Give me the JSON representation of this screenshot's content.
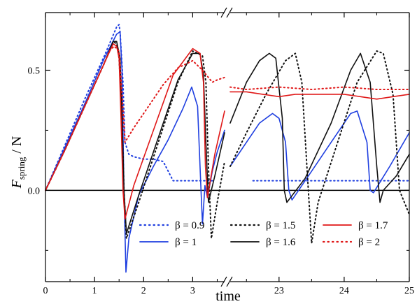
{
  "chart_data": {
    "type": "line",
    "title": "",
    "xlabel": "time",
    "ylabel": "F",
    "ylabel_sub": "spring",
    "ylabel_suffix": " / N",
    "xlim": [
      0,
      25
    ],
    "ylim": [
      -0.38,
      0.74
    ],
    "axis_break": {
      "left_segment": [
        0,
        3.65
      ],
      "right_segment": [
        22.25,
        25
      ]
    },
    "x_ticks": [
      0,
      1,
      2,
      3,
      23,
      24,
      25
    ],
    "y_ticks": [
      0.0,
      0.5
    ],
    "y_tick_labels": [
      "0.0",
      "0.5"
    ],
    "zero_line": true,
    "grid": false,
    "legend": {
      "position": "bottom",
      "columns": 3
    },
    "series": [
      {
        "name": "β = 0.9",
        "color": "#1f3fe0",
        "style": "dotted",
        "x": [
          0,
          0.4,
          0.8,
          1.2,
          1.45,
          1.5,
          1.52,
          1.58,
          1.62,
          1.7,
          1.8,
          2.0,
          2.2,
          2.4,
          2.6,
          3.0,
          3.4,
          22.6,
          23.0,
          23.5,
          24.0,
          24.5,
          25.0
        ],
        "y": [
          0,
          0.19,
          0.38,
          0.56,
          0.68,
          0.69,
          0.66,
          0.45,
          0.2,
          0.15,
          0.14,
          0.13,
          0.13,
          0.12,
          0.04,
          0.04,
          0.04,
          0.04,
          0.04,
          0.04,
          0.04,
          0.04,
          0.04
        ]
      },
      {
        "name": "β = 1",
        "color": "#1f3fe0",
        "style": "solid",
        "x": [
          0,
          0.4,
          0.8,
          1.2,
          1.45,
          1.52,
          1.56,
          1.6,
          1.64,
          1.7,
          1.9,
          2.2,
          2.5,
          2.8,
          2.98,
          3.1,
          3.17,
          3.2,
          3.25,
          3.3,
          3.4,
          3.5,
          3.65,
          22.25,
          22.5,
          22.7,
          22.9,
          23.0,
          23.1,
          23.15,
          23.2,
          23.5,
          23.8,
          24.1,
          24.2,
          24.35,
          24.4,
          24.45,
          24.7,
          25.0
        ],
        "y": [
          0,
          0.18,
          0.36,
          0.55,
          0.65,
          0.66,
          0.5,
          0.0,
          -0.34,
          -0.2,
          -0.02,
          0.1,
          0.21,
          0.34,
          0.43,
          0.35,
          0.0,
          -0.14,
          0.02,
          -0.03,
          0.08,
          0.16,
          0.25,
          0.1,
          0.2,
          0.28,
          0.32,
          0.3,
          0.2,
          0.0,
          -0.04,
          0.08,
          0.2,
          0.32,
          0.33,
          0.2,
          0.0,
          -0.01,
          0.1,
          0.24
        ]
      },
      {
        "name": "β = 1.5",
        "color": "#111111",
        "style": "dotted",
        "x": [
          0,
          0.4,
          0.8,
          1.2,
          1.38,
          1.45,
          1.5,
          1.56,
          1.6,
          1.65,
          1.9,
          2.3,
          2.7,
          3.0,
          3.2,
          3.27,
          3.32,
          3.38,
          3.5,
          3.65,
          22.25,
          22.5,
          22.8,
          23.1,
          23.25,
          23.35,
          23.45,
          23.5,
          23.6,
          23.9,
          24.2,
          24.5,
          24.6,
          24.75,
          24.85,
          25.0
        ],
        "y": [
          0,
          0.17,
          0.35,
          0.53,
          0.62,
          0.61,
          0.55,
          0.3,
          0.0,
          -0.2,
          -0.05,
          0.2,
          0.45,
          0.58,
          0.56,
          0.45,
          0.1,
          -0.2,
          -0.05,
          0.12,
          0.1,
          0.24,
          0.4,
          0.54,
          0.57,
          0.45,
          0.0,
          -0.22,
          -0.05,
          0.2,
          0.45,
          0.58,
          0.57,
          0.4,
          0.0,
          -0.1
        ]
      },
      {
        "name": "β = 1.6",
        "color": "#111111",
        "style": "solid",
        "x": [
          0,
          0.4,
          0.8,
          1.2,
          1.38,
          1.45,
          1.52,
          1.56,
          1.6,
          1.65,
          1.9,
          2.3,
          2.7,
          3.0,
          3.15,
          3.22,
          3.27,
          3.32,
          3.45,
          3.65,
          22.25,
          22.5,
          22.7,
          22.85,
          22.95,
          23.05,
          23.08,
          23.12,
          23.4,
          23.8,
          24.1,
          24.25,
          24.4,
          24.5,
          24.55,
          24.6,
          24.8,
          25.0
        ],
        "y": [
          0,
          0.17,
          0.35,
          0.53,
          0.62,
          0.62,
          0.55,
          0.3,
          0.0,
          -0.18,
          -0.02,
          0.22,
          0.46,
          0.57,
          0.57,
          0.48,
          0.2,
          -0.05,
          0.06,
          0.24,
          0.28,
          0.45,
          0.54,
          0.57,
          0.55,
          0.3,
          0.0,
          -0.05,
          0.05,
          0.28,
          0.5,
          0.57,
          0.45,
          0.1,
          -0.05,
          0.0,
          0.06,
          0.15
        ]
      },
      {
        "name": "β = 1.7",
        "color": "#e01818",
        "style": "solid",
        "x": [
          0,
          0.4,
          0.8,
          1.2,
          1.38,
          1.45,
          1.5,
          1.54,
          1.58,
          1.62,
          1.8,
          2.2,
          2.6,
          3.0,
          3.15,
          3.22,
          3.26,
          3.3,
          3.45,
          3.65,
          22.25,
          22.5,
          22.75,
          23.0,
          23.25,
          23.5,
          23.75,
          24.0,
          24.25,
          24.5,
          24.75,
          25.0
        ],
        "y": [
          0,
          0.17,
          0.35,
          0.53,
          0.61,
          0.6,
          0.55,
          0.3,
          0.0,
          -0.12,
          0.02,
          0.25,
          0.48,
          0.59,
          0.57,
          0.45,
          0.1,
          -0.03,
          0.15,
          0.33,
          0.41,
          0.41,
          0.4,
          0.39,
          0.4,
          0.4,
          0.4,
          0.4,
          0.39,
          0.38,
          0.39,
          0.4
        ]
      },
      {
        "name": "β = 2",
        "color": "#e01818",
        "style": "dotted",
        "x": [
          0,
          0.4,
          0.8,
          1.2,
          1.3,
          1.4,
          1.5,
          1.56,
          1.62,
          1.8,
          2.1,
          2.4,
          2.7,
          3.0,
          3.2,
          3.4,
          3.5,
          3.65,
          22.25,
          22.5,
          23.0,
          23.5,
          24.0,
          24.5,
          25.0
        ],
        "y": [
          0,
          0.17,
          0.35,
          0.53,
          0.58,
          0.6,
          0.58,
          0.4,
          0.2,
          0.26,
          0.35,
          0.44,
          0.51,
          0.54,
          0.5,
          0.45,
          0.46,
          0.47,
          0.43,
          0.42,
          0.43,
          0.42,
          0.43,
          0.42,
          0.42
        ]
      }
    ]
  }
}
